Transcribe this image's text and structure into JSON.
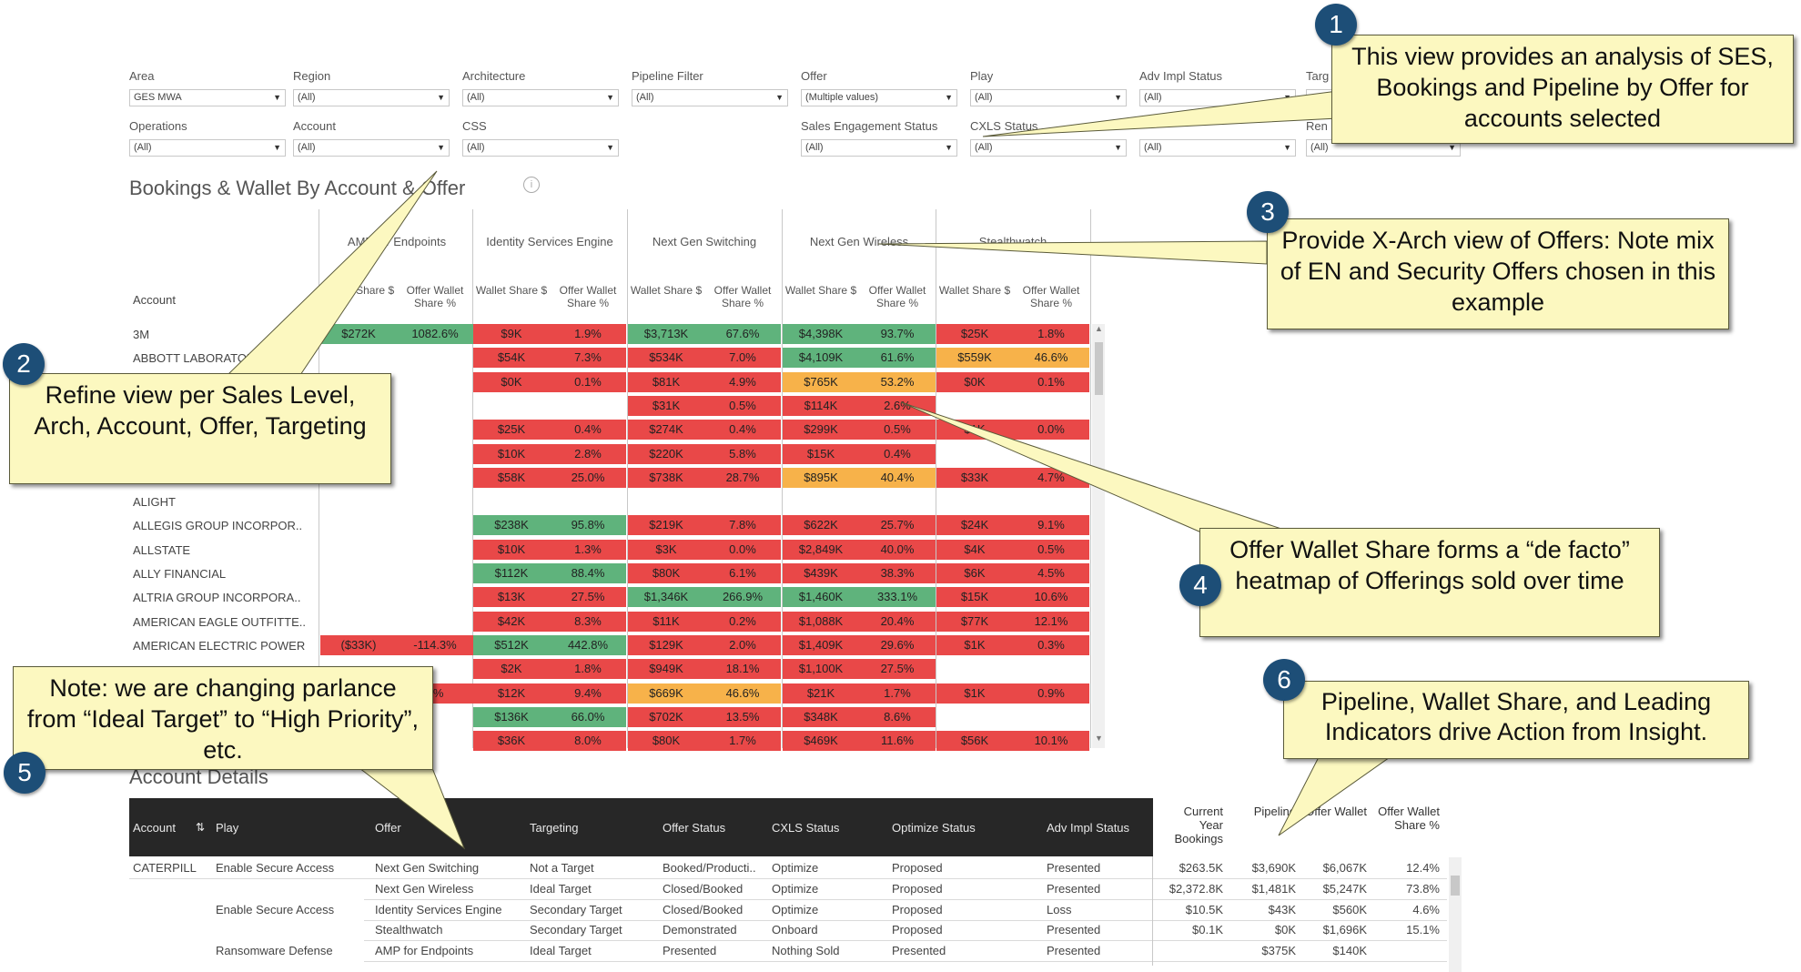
{
  "filters": {
    "row1": [
      {
        "label": "Area",
        "value": "GES MWA"
      },
      {
        "label": "Region",
        "value": "(All)"
      },
      {
        "label": "Architecture",
        "value": "(All)"
      },
      {
        "label": "Pipeline Filter",
        "value": "(All)"
      },
      {
        "label": "Offer",
        "value": "(Multiple values)"
      },
      {
        "label": "Play",
        "value": "(All)"
      },
      {
        "label": "Adv Impl Status",
        "value": "(All)"
      },
      {
        "label": "Targ",
        "value": ""
      }
    ],
    "row2": [
      {
        "label": "Operations",
        "value": "(All)"
      },
      {
        "label": "Account",
        "value": "(All)"
      },
      {
        "label": "CSS",
        "value": "(All)"
      },
      {
        "label": "Sales Engagement Status",
        "value": "(All)"
      },
      {
        "label": "CXLS Status",
        "value": "(All)"
      },
      {
        "label": "",
        "value": "(All)"
      },
      {
        "label": "Ren",
        "value": "(All)"
      }
    ]
  },
  "bookings": {
    "title": "Bookings & Wallet By Account & Offer",
    "account_header": "Account",
    "offers": [
      "AMP for Endpoints",
      "Identity Services Engine",
      "Next Gen Switching",
      "Next Gen Wireless",
      "Stealthwatch"
    ],
    "sub_share": "Wallet Share $",
    "sub_pct": "Offer Wallet Share %",
    "rows": [
      {
        "account": "3M",
        "cells": [
          [
            "$272K",
            "1082.6%",
            "green"
          ],
          [
            "$9K",
            "1.9%",
            "red"
          ],
          [
            "$3,713K",
            "67.6%",
            "green"
          ],
          [
            "$4,398K",
            "93.7%",
            "green"
          ],
          [
            "$25K",
            "1.8%",
            "red"
          ]
        ]
      },
      {
        "account": "ABBOTT LABORATORIES",
        "cells": [
          null,
          [
            "$54K",
            "7.3%",
            "red"
          ],
          [
            "$534K",
            "7.0%",
            "red"
          ],
          [
            "$4,109K",
            "61.6%",
            "green"
          ],
          [
            "$559K",
            "46.6%",
            "orange"
          ]
        ]
      },
      {
        "account": "",
        "cells": [
          null,
          [
            "$0K",
            "0.1%",
            "red"
          ],
          [
            "$81K",
            "4.9%",
            "red"
          ],
          [
            "$765K",
            "53.2%",
            "orange"
          ],
          [
            "$0K",
            "0.1%",
            "red"
          ]
        ]
      },
      {
        "account": "",
        "cells": [
          null,
          null,
          [
            "$31K",
            "0.5%",
            "red"
          ],
          [
            "$114K",
            "2.6%",
            "red"
          ],
          null
        ]
      },
      {
        "account": "",
        "cells": [
          null,
          [
            "$25K",
            "0.4%",
            "red"
          ],
          [
            "$274K",
            "0.4%",
            "red"
          ],
          [
            "$299K",
            "0.5%",
            "red"
          ],
          [
            "$1K",
            "0.0%",
            "red"
          ]
        ]
      },
      {
        "account": "",
        "cells": [
          null,
          [
            "$10K",
            "2.8%",
            "red"
          ],
          [
            "$220K",
            "5.8%",
            "red"
          ],
          [
            "$15K",
            "0.4%",
            "red"
          ],
          null
        ]
      },
      {
        "account": "",
        "cells": [
          null,
          [
            "$58K",
            "25.0%",
            "red"
          ],
          [
            "$738K",
            "28.7%",
            "red"
          ],
          [
            "$895K",
            "40.4%",
            "orange"
          ],
          [
            "$33K",
            "4.7%",
            "red"
          ]
        ]
      },
      {
        "account": "ALIGHT",
        "cells": [
          null,
          null,
          null,
          null,
          null
        ]
      },
      {
        "account": "ALLEGIS GROUP INCORPOR..",
        "cells": [
          null,
          [
            "$238K",
            "95.8%",
            "green"
          ],
          [
            "$219K",
            "7.8%",
            "red"
          ],
          [
            "$622K",
            "25.7%",
            "red"
          ],
          [
            "$24K",
            "9.1%",
            "red"
          ]
        ]
      },
      {
        "account": "ALLSTATE",
        "cells": [
          null,
          [
            "$10K",
            "1.3%",
            "red"
          ],
          [
            "$3K",
            "0.0%",
            "red"
          ],
          [
            "$2,849K",
            "40.0%",
            "red"
          ],
          [
            "$4K",
            "0.5%",
            "red"
          ]
        ]
      },
      {
        "account": "ALLY FINANCIAL",
        "cells": [
          null,
          [
            "$112K",
            "88.4%",
            "green"
          ],
          [
            "$80K",
            "6.1%",
            "red"
          ],
          [
            "$439K",
            "38.3%",
            "red"
          ],
          [
            "$6K",
            "4.5%",
            "red"
          ]
        ]
      },
      {
        "account": "ALTRIA GROUP INCORPORA..",
        "cells": [
          null,
          [
            "$13K",
            "27.5%",
            "red"
          ],
          [
            "$1,346K",
            "266.9%",
            "green"
          ],
          [
            "$1,460K",
            "333.1%",
            "green"
          ],
          [
            "$15K",
            "10.6%",
            "red"
          ]
        ]
      },
      {
        "account": "AMERICAN EAGLE OUTFITTE..",
        "cells": [
          null,
          [
            "$42K",
            "8.3%",
            "red"
          ],
          [
            "$11K",
            "0.2%",
            "red"
          ],
          [
            "$1,088K",
            "20.4%",
            "red"
          ],
          [
            "$77K",
            "12.1%",
            "red"
          ]
        ]
      },
      {
        "account": "AMERICAN ELECTRIC POWER",
        "cells": [
          [
            "($33K)",
            "-114.3%",
            "red"
          ],
          [
            "$512K",
            "442.8%",
            "green"
          ],
          [
            "$129K",
            "2.0%",
            "red"
          ],
          [
            "$1,409K",
            "29.6%",
            "red"
          ],
          [
            "$1K",
            "0.3%",
            "red"
          ]
        ]
      },
      {
        "account": "",
        "cells": [
          null,
          [
            "$2K",
            "1.8%",
            "red"
          ],
          [
            "$949K",
            "18.1%",
            "red"
          ],
          [
            "$1,100K",
            "27.5%",
            "red"
          ],
          null
        ]
      },
      {
        "account": "",
        "cells": [
          [
            "",
            "8%",
            "red"
          ],
          [
            "$12K",
            "9.4%",
            "red"
          ],
          [
            "$669K",
            "46.6%",
            "orange"
          ],
          [
            "$21K",
            "1.7%",
            "red"
          ],
          [
            "$1K",
            "0.9%",
            "red"
          ]
        ]
      },
      {
        "account": "",
        "cells": [
          null,
          [
            "$136K",
            "66.0%",
            "green"
          ],
          [
            "$702K",
            "13.5%",
            "red"
          ],
          [
            "$348K",
            "8.6%",
            "red"
          ],
          null
        ]
      },
      {
        "account": "",
        "cells": [
          null,
          [
            "$36K",
            "8.0%",
            "red"
          ],
          [
            "$80K",
            "1.7%",
            "red"
          ],
          [
            "$469K",
            "11.6%",
            "red"
          ],
          [
            "$56K",
            "10.1%",
            "red"
          ]
        ]
      }
    ]
  },
  "details": {
    "title": "Account Details",
    "headers": [
      "Account",
      "Play",
      "Offer",
      "Targeting",
      "Offer Status",
      "CXLS Status",
      "Optimize Status",
      "Adv Impl Status",
      "Current Year Bookings",
      "Pipeline",
      "Offer Wallet",
      "Offer Wallet Share %"
    ],
    "rows": [
      [
        "CATERPILL..",
        "Enable Secure Access",
        "Next Gen Switching",
        "Not a Target",
        "Booked/Producti..",
        "Optimize",
        "Proposed",
        "Presented",
        "$263.5K",
        "$3,690K",
        "$6,067K",
        "12.4%"
      ],
      [
        "",
        "",
        "Next Gen Wireless",
        "Ideal Target",
        "Closed/Booked",
        "Optimize",
        "Proposed",
        "Presented",
        "$2,372.8K",
        "$1,481K",
        "$5,247K",
        "73.8%"
      ],
      [
        "",
        "Enable Secure Access",
        "Identity Services Engine",
        "Secondary Target",
        "Closed/Booked",
        "Optimize",
        "Proposed",
        "Loss",
        "$10.5K",
        "$43K",
        "$560K",
        "4.6%"
      ],
      [
        "",
        "",
        "Stealthwatch",
        "Secondary Target",
        "Demonstrated",
        "Onboard",
        "Proposed",
        "Presented",
        "$0.1K",
        "$0K",
        "$1,696K",
        "15.1%"
      ],
      [
        "",
        "Ransomware Defense",
        "AMP for Endpoints",
        "Ideal Target",
        "Presented",
        "Nothing Sold",
        "Presented",
        "Presented",
        "",
        "$375K",
        "$140K",
        ""
      ]
    ]
  },
  "callouts": {
    "c1": {
      "num": "1",
      "text": "This view provides an analysis of SES, Bookings and Pipeline by Offer for accounts selected"
    },
    "c2": {
      "num": "2",
      "text": "Refine view per Sales Level, Arch, Account, Offer, Targeting"
    },
    "c3": {
      "num": "3",
      "text": "Provide X-Arch view of Offers: Note mix of EN and Security Offers chosen in this example"
    },
    "c4": {
      "num": "4",
      "text": "Offer Wallet Share forms a “de facto” heatmap of Offerings sold over time"
    },
    "c5": {
      "num": "5",
      "text": "Note: we are changing parlance from “Ideal Target” to “High Priority”, etc."
    },
    "c6": {
      "num": "6",
      "text": "Pipeline, Wallet Share, and Leading Indicators drive Action from Insight."
    }
  },
  "colors": {
    "red": "#e94848",
    "green": "#5fb37c",
    "orange": "#f7b24a",
    "callout": "#fcf8c0",
    "badge": "#1d4e77"
  }
}
